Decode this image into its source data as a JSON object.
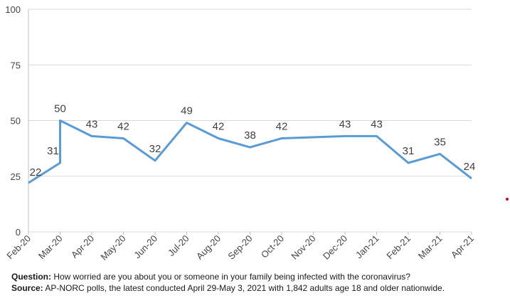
{
  "chart_data": {
    "type": "line",
    "categories": [
      "Feb-20",
      "Mar-20",
      "Apr-20",
      "May-20",
      "Jun-20",
      "Jul-20",
      "Aug-20",
      "Sep-20",
      "Oct-20",
      "Nov-20",
      "Dec-20",
      "Jan-21",
      "Feb-21",
      "Mar-21",
      "Apr-21"
    ],
    "points": [
      {
        "x": "Feb-20",
        "y": 22,
        "label": "22"
      },
      {
        "x": "Mar-20",
        "y": 31,
        "label": "31"
      },
      {
        "x": "Mar-20",
        "y": 50,
        "label": "50"
      },
      {
        "x": "Apr-20",
        "y": 43,
        "label": "43"
      },
      {
        "x": "May-20",
        "y": 42,
        "label": "42"
      },
      {
        "x": "Jun-20",
        "y": 32,
        "label": "32"
      },
      {
        "x": "Jul-20",
        "y": 49,
        "label": "49"
      },
      {
        "x": "Aug-20",
        "y": 42,
        "label": "42"
      },
      {
        "x": "Sep-20",
        "y": 38,
        "label": "38"
      },
      {
        "x": "Oct-20",
        "y": 42,
        "label": "42"
      },
      {
        "x": "Dec-20",
        "y": 43,
        "label": "43"
      },
      {
        "x": "Jan-21",
        "y": 43,
        "label": "43"
      },
      {
        "x": "Feb-21",
        "y": 31,
        "label": "31"
      },
      {
        "x": "Mar-21",
        "y": 35,
        "label": "35"
      },
      {
        "x": "Apr-21",
        "y": 24,
        "label": "24"
      }
    ],
    "ylim": [
      0,
      100
    ],
    "yticks": [
      "0",
      "25",
      "50",
      "75",
      "100"
    ],
    "grid": true,
    "line_color": "#5b9bd5"
  },
  "footnote": {
    "question_label": "Question:",
    "question_text": " How worried are you about you or someone in your family being infected with the coronavirus?",
    "source_label": "Source:",
    "source_text": "  AP-NORC polls, the latest conducted April 29-May 3, 2021 with 1,842 adults age 18 and older nationwide."
  },
  "colors": {
    "gridline": "#d9d9d9",
    "axis": "#bfbfbf",
    "marker_dot": "#d0021b"
  }
}
